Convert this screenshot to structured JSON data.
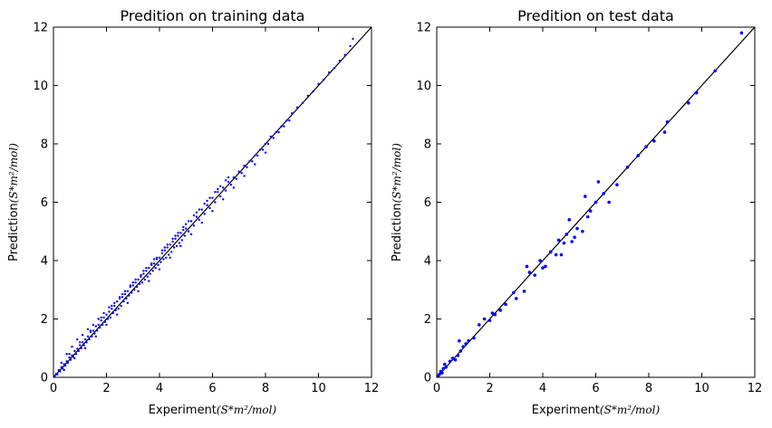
{
  "chart_data": [
    {
      "type": "scatter",
      "title": "Predition on training data",
      "xlabel": "Experiment",
      "ylabel": "Prediction",
      "unit": "(S*m²/mol)",
      "xlim": [
        0,
        12
      ],
      "ylim": [
        0,
        12
      ],
      "xticks": [
        "0",
        "2",
        "4",
        "6",
        "8",
        "10",
        "12"
      ],
      "yticks": [
        "0",
        "2",
        "4",
        "6",
        "8",
        "10",
        "12"
      ],
      "grid": false,
      "reference_line": {
        "from": [
          0,
          0
        ],
        "to": [
          12,
          12
        ],
        "color": "#000000"
      },
      "series": [
        {
          "color": "#0000ff",
          "x": [
            0.05,
            0.1,
            0.15,
            0.2,
            0.25,
            0.3,
            0.35,
            0.4,
            0.45,
            0.5,
            0.55,
            0.6,
            0.65,
            0.7,
            0.75,
            0.8,
            0.85,
            0.9,
            0.95,
            1.0,
            1.05,
            1.1,
            1.15,
            1.2,
            1.25,
            1.3,
            1.35,
            1.4,
            1.45,
            1.5,
            1.55,
            1.6,
            1.65,
            1.7,
            1.75,
            1.8,
            1.85,
            1.9,
            1.95,
            2.0,
            2.05,
            2.1,
            2.15,
            2.2,
            2.25,
            2.3,
            2.35,
            2.4,
            2.45,
            2.5,
            2.55,
            2.6,
            2.65,
            2.7,
            2.75,
            2.8,
            2.85,
            2.9,
            2.95,
            3.0,
            3.05,
            3.1,
            3.15,
            3.2,
            3.25,
            3.3,
            3.35,
            3.4,
            3.45,
            3.5,
            3.55,
            3.6,
            3.65,
            3.7,
            3.75,
            3.8,
            3.85,
            3.9,
            3.95,
            4.0,
            4.05,
            4.1,
            4.15,
            4.2,
            4.25,
            4.3,
            4.35,
            4.4,
            4.45,
            4.5,
            4.55,
            4.6,
            4.65,
            4.7,
            4.75,
            4.8,
            4.85,
            4.9,
            4.95,
            5.0,
            5.1,
            5.2,
            5.3,
            5.4,
            5.5,
            5.6,
            5.7,
            5.8,
            5.9,
            6.0,
            6.1,
            6.2,
            6.3,
            6.4,
            6.5,
            6.6,
            6.7,
            6.8,
            6.9,
            7.0,
            7.1,
            7.2,
            7.3,
            7.4,
            7.5,
            7.6,
            7.7,
            7.8,
            7.9,
            8.0,
            8.1,
            8.2,
            8.3,
            8.4,
            8.5,
            8.6,
            8.7,
            8.8,
            8.9,
            9.0,
            9.2,
            9.4,
            9.6,
            9.8,
            10.0,
            10.2,
            10.4,
            10.6,
            10.8,
            11.0,
            11.2,
            11.3,
            0.3,
            0.5,
            0.7,
            0.9,
            1.1,
            1.3,
            1.5,
            1.7,
            1.9,
            2.1,
            2.3,
            2.5,
            2.7,
            2.9,
            3.1,
            3.3,
            3.5,
            3.7,
            3.9,
            4.1,
            4.3,
            4.5,
            4.7,
            4.9,
            5.1,
            5.3,
            5.5,
            5.7,
            5.9,
            6.1,
            6.3,
            6.5,
            0.4,
            0.8,
            1.2,
            1.6,
            2.0,
            2.4,
            2.8,
            3.2,
            3.6,
            4.0,
            4.4,
            4.8,
            5.2,
            5.6,
            6.0,
            6.4,
            6.8,
            7.2,
            7.6,
            8.0,
            0.6,
            1.0,
            1.4,
            1.8,
            2.2,
            2.6,
            3.0,
            3.4,
            3.8,
            4.2,
            4.6,
            5.0,
            5.4,
            5.8,
            6.2,
            6.6
          ],
          "y": [
            0.05,
            0.12,
            0.1,
            0.25,
            0.2,
            0.35,
            0.3,
            0.45,
            0.4,
            0.55,
            0.5,
            0.68,
            0.6,
            0.75,
            0.7,
            0.9,
            0.8,
            0.98,
            0.9,
            1.1,
            1.0,
            1.2,
            1.1,
            1.3,
            1.2,
            1.4,
            1.3,
            1.55,
            1.4,
            1.6,
            1.5,
            1.75,
            1.6,
            1.8,
            1.7,
            1.95,
            1.8,
            2.05,
            1.9,
            2.15,
            2.0,
            2.25,
            2.05,
            2.35,
            2.2,
            2.45,
            2.3,
            2.6,
            2.35,
            2.7,
            2.45,
            2.75,
            2.6,
            2.85,
            2.7,
            2.95,
            2.8,
            3.1,
            2.9,
            3.15,
            3.0,
            3.25,
            3.1,
            3.35,
            3.2,
            3.45,
            3.25,
            3.55,
            3.35,
            3.65,
            3.45,
            3.75,
            3.55,
            3.85,
            3.65,
            3.9,
            3.75,
            4.05,
            3.85,
            4.1,
            3.95,
            4.25,
            4.05,
            4.35,
            4.1,
            4.45,
            4.2,
            4.55,
            4.3,
            4.65,
            4.45,
            4.75,
            4.5,
            4.85,
            4.6,
            4.95,
            4.7,
            5.05,
            4.85,
            5.1,
            5.0,
            5.35,
            5.2,
            5.5,
            5.4,
            5.75,
            5.6,
            5.9,
            5.8,
            6.15,
            6.0,
            6.35,
            6.2,
            6.5,
            6.4,
            6.7,
            6.6,
            6.85,
            6.8,
            7.05,
            7.0,
            7.25,
            7.2,
            7.4,
            7.4,
            7.6,
            7.6,
            7.8,
            7.8,
            8.0,
            8.0,
            8.25,
            8.2,
            8.4,
            8.4,
            8.6,
            8.6,
            8.8,
            8.8,
            9.05,
            9.25,
            9.4,
            9.65,
            9.8,
            10.05,
            10.2,
            10.45,
            10.6,
            10.85,
            11.05,
            11.35,
            11.6,
            0.5,
            0.8,
            1.05,
            1.3,
            1.45,
            1.65,
            1.8,
            2.0,
            2.2,
            2.4,
            2.55,
            2.75,
            2.95,
            3.15,
            3.35,
            3.5,
            3.75,
            3.9,
            4.1,
            4.35,
            4.55,
            4.75,
            4.95,
            5.15,
            5.35,
            5.55,
            5.75,
            5.95,
            6.15,
            6.35,
            6.55,
            6.75,
            0.25,
            0.65,
            1.0,
            1.4,
            1.8,
            2.15,
            2.55,
            2.95,
            3.3,
            3.7,
            4.1,
            4.5,
            4.9,
            5.3,
            5.7,
            6.1,
            6.5,
            6.9,
            7.3,
            7.7,
            0.8,
            1.2,
            1.6,
            2.05,
            2.45,
            2.85,
            3.25,
            3.65,
            4.05,
            4.45,
            4.85,
            5.25,
            5.65,
            6.05,
            6.45,
            6.85
          ]
        }
      ]
    },
    {
      "type": "scatter",
      "title": "Predition on test data",
      "xlabel": "Experiment",
      "ylabel": "Prediction",
      "unit": "(S*m²/mol)",
      "xlim": [
        0,
        12
      ],
      "ylim": [
        0,
        12
      ],
      "xticks": [
        "0",
        "2",
        "4",
        "6",
        "8",
        "10",
        "12"
      ],
      "yticks": [
        "0",
        "2",
        "4",
        "6",
        "8",
        "10",
        "12"
      ],
      "grid": false,
      "reference_line": {
        "from": [
          0,
          0
        ],
        "to": [
          12,
          12
        ],
        "color": "#000000"
      },
      "series": [
        {
          "color": "#0000ff",
          "x": [
            0.05,
            0.1,
            0.15,
            0.2,
            0.25,
            0.3,
            0.35,
            0.5,
            0.6,
            0.7,
            0.8,
            0.85,
            0.9,
            1.0,
            1.1,
            1.2,
            1.4,
            1.6,
            1.8,
            2.0,
            2.1,
            2.2,
            2.4,
            2.6,
            2.9,
            3.0,
            3.3,
            3.4,
            3.5,
            3.7,
            3.9,
            4.0,
            4.1,
            4.3,
            4.5,
            4.6,
            4.7,
            4.8,
            4.9,
            5.0,
            5.1,
            5.2,
            5.3,
            5.5,
            5.6,
            5.7,
            5.8,
            6.0,
            6.1,
            6.3,
            6.5,
            6.8,
            7.2,
            7.6,
            7.9,
            8.2,
            8.6,
            8.7,
            9.5,
            9.8,
            10.5,
            11.5
          ],
          "y": [
            0.05,
            0.1,
            0.2,
            0.15,
            0.3,
            0.45,
            0.35,
            0.55,
            0.65,
            0.6,
            0.75,
            1.25,
            0.9,
            1.05,
            1.15,
            1.25,
            1.35,
            1.8,
            2.0,
            1.95,
            2.2,
            2.15,
            2.3,
            2.5,
            2.9,
            2.7,
            2.95,
            3.8,
            3.6,
            3.5,
            4.0,
            3.75,
            3.8,
            4.3,
            4.2,
            4.7,
            4.2,
            4.6,
            4.9,
            5.4,
            4.65,
            4.8,
            5.1,
            5.0,
            6.2,
            5.5,
            5.7,
            6.0,
            6.7,
            6.3,
            6.0,
            6.6,
            7.2,
            7.6,
            7.9,
            8.1,
            8.4,
            8.75,
            9.4,
            9.75,
            10.5,
            11.8
          ]
        }
      ]
    }
  ]
}
